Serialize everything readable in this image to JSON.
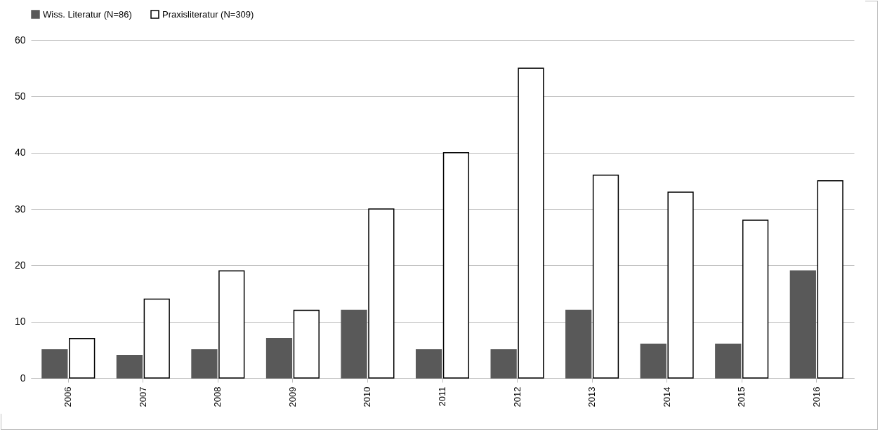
{
  "chart_data": {
    "type": "bar",
    "categories": [
      "2006",
      "2007",
      "2008",
      "2009",
      "2010",
      "2011",
      "2012",
      "2013",
      "2014",
      "2015",
      "2016"
    ],
    "series": [
      {
        "name": "Wiss. Literatur (N=86)",
        "color": "#595959",
        "values": [
          5,
          4,
          5,
          7,
          12,
          5,
          5,
          12,
          6,
          6,
          19
        ]
      },
      {
        "name": "Praxisliteratur (N=309)",
        "color": "#ffffff",
        "values": [
          7,
          14,
          19,
          12,
          30,
          40,
          55,
          36,
          33,
          28,
          35
        ]
      }
    ],
    "ylim": [
      0,
      60
    ],
    "yticks": [
      0,
      10,
      20,
      30,
      40,
      50,
      60
    ],
    "grid": "y",
    "legend": "top"
  }
}
